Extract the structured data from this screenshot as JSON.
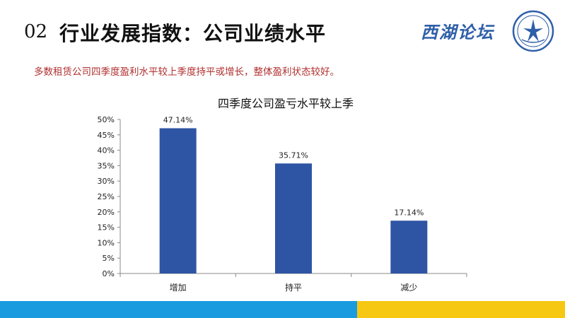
{
  "header": {
    "number": "02",
    "title": "行业发展指数：公司业绩水平",
    "brand": "西湖论坛"
  },
  "subtitle": "多数租赁公司四季度盈利水平较上季度持平或增长，整体盈利状态较好。",
  "colors": {
    "bar": "#2e54a4",
    "footer_left": "#1a9be0",
    "footer_right": "#f6c812",
    "subtitle_text": "#b0302f",
    "logo": "#2f5fa8"
  },
  "chart_data": {
    "type": "bar",
    "title": "四季度公司盈亏水平较上季",
    "categories": [
      "增加",
      "持平",
      "减少"
    ],
    "values": [
      47.14,
      35.71,
      17.14
    ],
    "data_labels": [
      "47.14%",
      "35.71%",
      "17.14%"
    ],
    "ylim": [
      0,
      50
    ],
    "yticks": [
      "0%",
      "5%",
      "10%",
      "15%",
      "20%",
      "25%",
      "30%",
      "35%",
      "40%",
      "45%",
      "50%"
    ],
    "grid": false,
    "xlabel": "",
    "ylabel": ""
  }
}
